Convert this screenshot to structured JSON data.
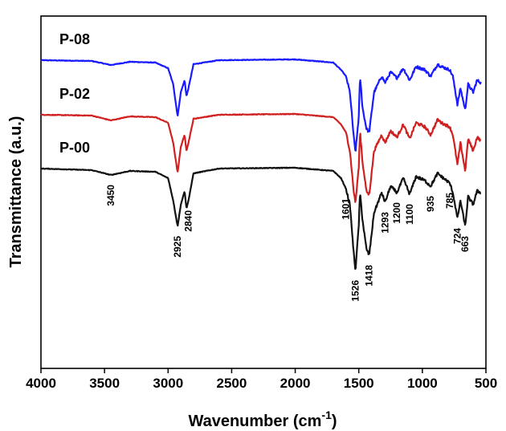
{
  "chart_data": {
    "type": "line",
    "title": "",
    "xlabel": "Wavenumber (cm",
    "xlabel_superscript": "-1",
    "xlabel_close": ")",
    "ylabel": "Transmittance (a.u.)",
    "xlim": [
      4000,
      500
    ],
    "x_reversed": true,
    "y_ticks_shown": false,
    "grid": false,
    "x_ticks": [
      4000,
      3500,
      3000,
      2500,
      2000,
      1500,
      1000,
      500
    ],
    "series": [
      {
        "name": "P-08",
        "color": "#1a1aff",
        "offset": 1.35,
        "points": [
          [
            4000,
            0
          ],
          [
            3600,
            -0.01
          ],
          [
            3450,
            -0.06
          ],
          [
            3300,
            -0.02
          ],
          [
            3100,
            -0.03
          ],
          [
            3000,
            -0.1
          ],
          [
            2960,
            -0.3
          ],
          [
            2925,
            -0.7
          ],
          [
            2900,
            -0.4
          ],
          [
            2870,
            -0.25
          ],
          [
            2855,
            -0.45
          ],
          [
            2840,
            -0.35
          ],
          [
            2800,
            -0.05
          ],
          [
            2600,
            0
          ],
          [
            2000,
            0.01
          ],
          [
            1700,
            -0.03
          ],
          [
            1640,
            -0.12
          ],
          [
            1601,
            -0.2
          ],
          [
            1570,
            -0.4
          ],
          [
            1540,
            -0.95
          ],
          [
            1526,
            -1.15
          ],
          [
            1500,
            -0.7
          ],
          [
            1490,
            -0.2
          ],
          [
            1470,
            -0.6
          ],
          [
            1440,
            -0.85
          ],
          [
            1418,
            -0.9
          ],
          [
            1380,
            -0.4
          ],
          [
            1320,
            -0.2
          ],
          [
            1293,
            -0.28
          ],
          [
            1250,
            -0.15
          ],
          [
            1200,
            -0.22
          ],
          [
            1150,
            -0.1
          ],
          [
            1100,
            -0.25
          ],
          [
            1050,
            -0.08
          ],
          [
            980,
            -0.12
          ],
          [
            935,
            -0.2
          ],
          [
            880,
            -0.05
          ],
          [
            850,
            -0.08
          ],
          [
            785,
            -0.12
          ],
          [
            760,
            -0.2
          ],
          [
            724,
            -0.55
          ],
          [
            700,
            -0.35
          ],
          [
            663,
            -0.62
          ],
          [
            640,
            -0.3
          ],
          [
            600,
            -0.4
          ],
          [
            570,
            -0.25
          ],
          [
            540,
            -0.28
          ]
        ]
      },
      {
        "name": "P-02",
        "color": "#d12020",
        "offset": 0.67,
        "points": [
          [
            4000,
            0
          ],
          [
            3600,
            -0.01
          ],
          [
            3450,
            -0.07
          ],
          [
            3300,
            -0.02
          ],
          [
            3100,
            -0.03
          ],
          [
            3000,
            -0.1
          ],
          [
            2960,
            -0.35
          ],
          [
            2925,
            -0.72
          ],
          [
            2900,
            -0.4
          ],
          [
            2870,
            -0.25
          ],
          [
            2855,
            -0.45
          ],
          [
            2840,
            -0.35
          ],
          [
            2800,
            -0.05
          ],
          [
            2600,
            0
          ],
          [
            2000,
            0.01
          ],
          [
            1700,
            -0.03
          ],
          [
            1640,
            -0.12
          ],
          [
            1601,
            -0.22
          ],
          [
            1570,
            -0.45
          ],
          [
            1540,
            -0.95
          ],
          [
            1526,
            -1.1
          ],
          [
            1500,
            -0.65
          ],
          [
            1490,
            -0.2
          ],
          [
            1470,
            -0.6
          ],
          [
            1440,
            -0.95
          ],
          [
            1418,
            -1.0
          ],
          [
            1380,
            -0.45
          ],
          [
            1320,
            -0.25
          ],
          [
            1293,
            -0.35
          ],
          [
            1250,
            -0.2
          ],
          [
            1200,
            -0.28
          ],
          [
            1150,
            -0.12
          ],
          [
            1100,
            -0.3
          ],
          [
            1050,
            -0.1
          ],
          [
            980,
            -0.15
          ],
          [
            935,
            -0.25
          ],
          [
            880,
            -0.06
          ],
          [
            850,
            -0.1
          ],
          [
            785,
            -0.15
          ],
          [
            760,
            -0.25
          ],
          [
            724,
            -0.62
          ],
          [
            700,
            -0.35
          ],
          [
            663,
            -0.7
          ],
          [
            640,
            -0.3
          ],
          [
            600,
            -0.45
          ],
          [
            570,
            -0.28
          ],
          [
            540,
            -0.32
          ]
        ]
      },
      {
        "name": "P-00",
        "color": "#111111",
        "offset": 0.0,
        "points": [
          [
            4000,
            0
          ],
          [
            3600,
            -0.02
          ],
          [
            3450,
            -0.08
          ],
          [
            3300,
            -0.03
          ],
          [
            3100,
            -0.04
          ],
          [
            3000,
            -0.12
          ],
          [
            2960,
            -0.4
          ],
          [
            2925,
            -0.72
          ],
          [
            2900,
            -0.45
          ],
          [
            2870,
            -0.28
          ],
          [
            2855,
            -0.5
          ],
          [
            2840,
            -0.4
          ],
          [
            2800,
            -0.06
          ],
          [
            2600,
            0
          ],
          [
            2000,
            0.01
          ],
          [
            1700,
            -0.03
          ],
          [
            1640,
            -0.12
          ],
          [
            1601,
            -0.25
          ],
          [
            1570,
            -0.45
          ],
          [
            1540,
            -1.05
          ],
          [
            1526,
            -1.27
          ],
          [
            1500,
            -0.7
          ],
          [
            1490,
            -0.3
          ],
          [
            1470,
            -0.65
          ],
          [
            1440,
            -1.0
          ],
          [
            1418,
            -1.08
          ],
          [
            1380,
            -0.55
          ],
          [
            1320,
            -0.3
          ],
          [
            1293,
            -0.42
          ],
          [
            1250,
            -0.22
          ],
          [
            1200,
            -0.3
          ],
          [
            1150,
            -0.12
          ],
          [
            1100,
            -0.32
          ],
          [
            1050,
            -0.1
          ],
          [
            980,
            -0.15
          ],
          [
            935,
            -0.22
          ],
          [
            880,
            -0.06
          ],
          [
            850,
            -0.1
          ],
          [
            785,
            -0.18
          ],
          [
            760,
            -0.3
          ],
          [
            724,
            -0.62
          ],
          [
            700,
            -0.4
          ],
          [
            663,
            -0.72
          ],
          [
            640,
            -0.35
          ],
          [
            600,
            -0.45
          ],
          [
            570,
            -0.28
          ],
          [
            540,
            -0.3
          ]
        ]
      }
    ],
    "peak_labels": [
      {
        "text": "3450",
        "x": 3450,
        "side": "below"
      },
      {
        "text": "2925",
        "x": 2925,
        "side": "below"
      },
      {
        "text": "2840",
        "x": 2840,
        "side": "below"
      },
      {
        "text": "1601",
        "x": 1601,
        "side": "below"
      },
      {
        "text": "1526",
        "x": 1526,
        "side": "below"
      },
      {
        "text": "1418",
        "x": 1418,
        "side": "below"
      },
      {
        "text": "1293",
        "x": 1293,
        "side": "below"
      },
      {
        "text": "1200",
        "x": 1200,
        "side": "below"
      },
      {
        "text": "1100",
        "x": 1100,
        "side": "below"
      },
      {
        "text": "935",
        "x": 935,
        "side": "below"
      },
      {
        "text": "785",
        "x": 785,
        "side": "below"
      },
      {
        "text": "724",
        "x": 724,
        "side": "below"
      },
      {
        "text": "663",
        "x": 663,
        "side": "below"
      }
    ]
  }
}
